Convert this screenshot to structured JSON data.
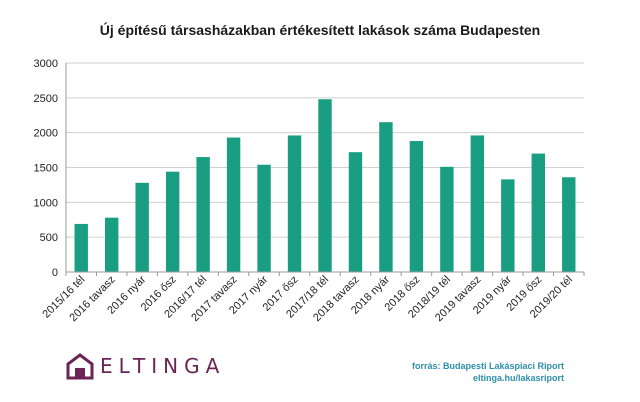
{
  "chart_data": {
    "type": "bar",
    "title": "Új építésű társasházakban értékesített lakások száma Budapesten",
    "categories": [
      "2015/16 tél",
      "2016 tavasz",
      "2016 nyár",
      "2016 ősz",
      "2016/17 tél",
      "2017 tavasz",
      "2017 nyár",
      "2017 ősz",
      "2017/18 tél",
      "2018 tavasz",
      "2018 nyár",
      "2018 ősz",
      "2018/19 tél",
      "2019 tavasz",
      "2019 nyár",
      "2019 ősz",
      "2019/20 tél"
    ],
    "values": [
      690,
      780,
      1280,
      1440,
      1650,
      1930,
      1540,
      1960,
      2480,
      1720,
      2150,
      1880,
      1510,
      1960,
      1330,
      1700,
      1360
    ],
    "ylim": [
      0,
      3000
    ],
    "yticks": [
      0,
      500,
      1000,
      1500,
      2000,
      2500,
      3000
    ],
    "xlabel": "",
    "ylabel": "",
    "grid": true,
    "bar_color": "#1a9e82"
  },
  "logo": {
    "text": "ELTINGA",
    "color": "#6a2456"
  },
  "source": {
    "line1": "forrás: Budapesti Lakáspiaci Riport",
    "line2": "eltinga.hu/lakasriport"
  }
}
